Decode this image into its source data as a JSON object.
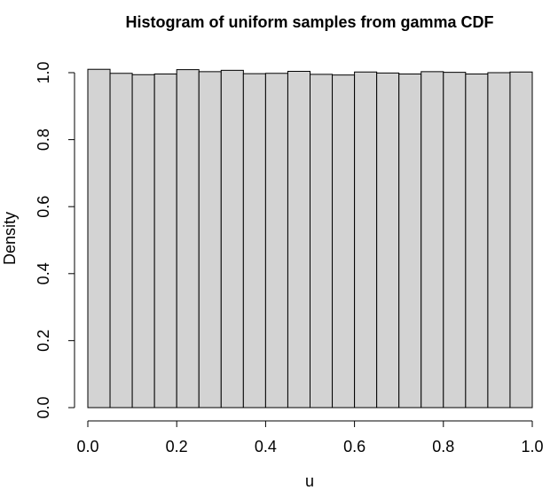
{
  "chart_data": {
    "type": "bar",
    "title": "Histogram of uniform samples from gamma CDF",
    "xlabel": "u",
    "ylabel": "Density",
    "xlim": [
      0,
      1
    ],
    "ylim": [
      0,
      1.0
    ],
    "bin_edges": [
      0.0,
      0.05,
      0.1,
      0.15,
      0.2,
      0.25,
      0.3,
      0.35,
      0.4,
      0.45,
      0.5,
      0.55,
      0.6,
      0.65,
      0.7,
      0.75,
      0.8,
      0.85,
      0.9,
      0.95,
      1.0
    ],
    "values": [
      1.01,
      0.998,
      0.994,
      0.996,
      1.009,
      1.003,
      1.007,
      0.997,
      0.998,
      1.004,
      0.995,
      0.993,
      1.002,
      0.999,
      0.996,
      1.003,
      1.001,
      0.996,
      1.0,
      1.002
    ],
    "x_ticks": [
      {
        "value": 0.0,
        "label": "0.0"
      },
      {
        "value": 0.2,
        "label": "0.2"
      },
      {
        "value": 0.4,
        "label": "0.4"
      },
      {
        "value": 0.6,
        "label": "0.6"
      },
      {
        "value": 0.8,
        "label": "0.8"
      },
      {
        "value": 1.0,
        "label": "1.0"
      }
    ],
    "y_ticks": [
      {
        "value": 0.0,
        "label": "0.0"
      },
      {
        "value": 0.2,
        "label": "0.2"
      },
      {
        "value": 0.4,
        "label": "0.4"
      },
      {
        "value": 0.6,
        "label": "0.6"
      },
      {
        "value": 0.8,
        "label": "0.8"
      },
      {
        "value": 1.0,
        "label": "1.0"
      }
    ],
    "bar_color": "#d3d3d3",
    "bar_edge_color": "#000000",
    "grid": false,
    "legend": "none"
  }
}
